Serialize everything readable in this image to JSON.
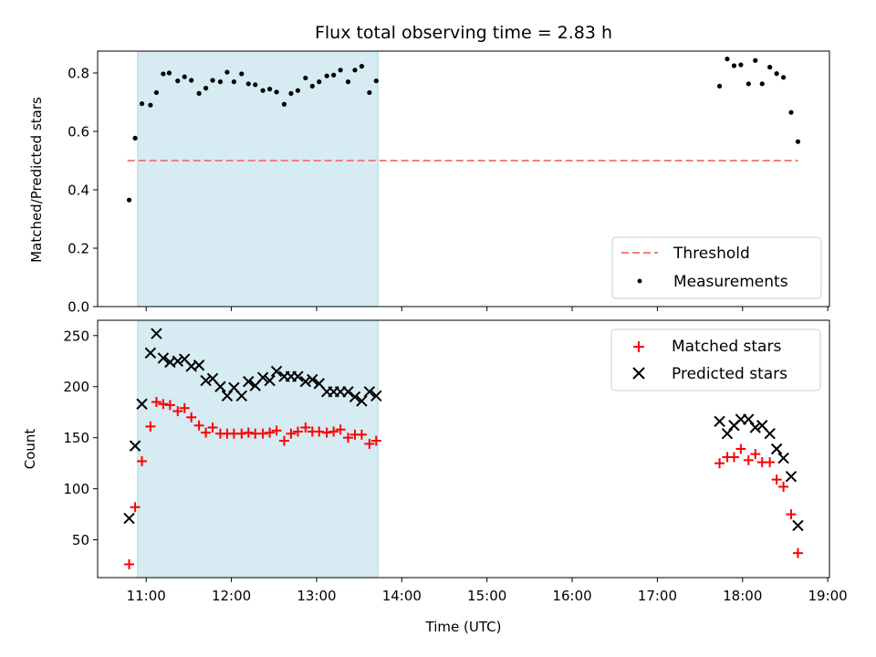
{
  "chart_data": [
    {
      "type": "scatter",
      "title": "Flux total observing time = 2.83 h",
      "xlabel": "",
      "ylabel": "Matched/Predicted stars",
      "xlim_hours": [
        10.43,
        19.02
      ],
      "ylim": [
        0,
        0.875
      ],
      "yticks": [
        0.0,
        0.2,
        0.4,
        0.6,
        0.8
      ],
      "ytick_labels": [
        "0.0",
        "0.2",
        "0.4",
        "0.6",
        "0.8"
      ],
      "shaded_span_hours": [
        10.9,
        13.72
      ],
      "shade_color": "#add8e6",
      "legend_position": "lower-right",
      "threshold": {
        "name": "Threshold",
        "value": 0.5,
        "x_range_hours": [
          10.78,
          18.65
        ],
        "color": "#f08080"
      },
      "series": [
        {
          "name": "Measurements",
          "marker": "dot",
          "color": "#000000",
          "points": [
            [
              10.8,
              0.365
            ],
            [
              10.87,
              0.577
            ],
            [
              10.95,
              0.695
            ],
            [
              11.05,
              0.69
            ],
            [
              11.12,
              0.733
            ],
            [
              11.2,
              0.797
            ],
            [
              11.27,
              0.8
            ],
            [
              11.37,
              0.773
            ],
            [
              11.45,
              0.787
            ],
            [
              11.53,
              0.775
            ],
            [
              11.62,
              0.73
            ],
            [
              11.7,
              0.748
            ],
            [
              11.78,
              0.775
            ],
            [
              11.87,
              0.77
            ],
            [
              11.95,
              0.803
            ],
            [
              12.03,
              0.77
            ],
            [
              12.12,
              0.797
            ],
            [
              12.2,
              0.763
            ],
            [
              12.28,
              0.76
            ],
            [
              12.37,
              0.74
            ],
            [
              12.45,
              0.745
            ],
            [
              12.53,
              0.735
            ],
            [
              12.62,
              0.693
            ],
            [
              12.7,
              0.73
            ],
            [
              12.78,
              0.74
            ],
            [
              12.87,
              0.783
            ],
            [
              12.95,
              0.755
            ],
            [
              13.03,
              0.77
            ],
            [
              13.12,
              0.79
            ],
            [
              13.2,
              0.793
            ],
            [
              13.28,
              0.81
            ],
            [
              13.37,
              0.77
            ],
            [
              13.45,
              0.81
            ],
            [
              13.53,
              0.823
            ],
            [
              13.62,
              0.733
            ],
            [
              13.7,
              0.773
            ],
            [
              17.73,
              0.755
            ],
            [
              17.82,
              0.848
            ],
            [
              17.9,
              0.825
            ],
            [
              17.98,
              0.828
            ],
            [
              18.07,
              0.763
            ],
            [
              18.15,
              0.843
            ],
            [
              18.23,
              0.763
            ],
            [
              18.32,
              0.82
            ],
            [
              18.4,
              0.798
            ],
            [
              18.48,
              0.785
            ],
            [
              18.57,
              0.665
            ],
            [
              18.65,
              0.565
            ]
          ]
        }
      ]
    },
    {
      "type": "scatter",
      "title": "",
      "xlabel": "Time (UTC)",
      "ylabel": "Count",
      "xlim_hours": [
        10.43,
        19.02
      ],
      "xticks_hours": [
        11,
        12,
        13,
        14,
        15,
        16,
        17,
        18,
        19
      ],
      "xtick_labels": [
        "11:00",
        "12:00",
        "13:00",
        "14:00",
        "15:00",
        "16:00",
        "17:00",
        "18:00",
        "19:00"
      ],
      "ylim": [
        13,
        265
      ],
      "yticks": [
        50,
        100,
        150,
        200,
        250
      ],
      "ytick_labels": [
        "50",
        "100",
        "150",
        "200",
        "250"
      ],
      "shaded_span_hours": [
        10.9,
        13.72
      ],
      "shade_color": "#add8e6",
      "legend_position": "upper-right",
      "series": [
        {
          "name": "Matched stars",
          "marker": "plus",
          "color": "#ff0000",
          "points": [
            [
              10.8,
              26
            ],
            [
              10.87,
              82
            ],
            [
              10.95,
              127
            ],
            [
              11.05,
              161
            ],
            [
              11.12,
              185
            ],
            [
              11.2,
              183
            ],
            [
              11.28,
              182
            ],
            [
              11.37,
              176
            ],
            [
              11.45,
              179
            ],
            [
              11.53,
              170
            ],
            [
              11.62,
              162
            ],
            [
              11.7,
              155
            ],
            [
              11.78,
              160
            ],
            [
              11.87,
              154
            ],
            [
              11.95,
              154
            ],
            [
              12.03,
              154
            ],
            [
              12.12,
              154
            ],
            [
              12.2,
              155
            ],
            [
              12.28,
              154
            ],
            [
              12.37,
              154
            ],
            [
              12.45,
              155
            ],
            [
              12.53,
              157
            ],
            [
              12.62,
              147
            ],
            [
              12.7,
              154
            ],
            [
              12.78,
              156
            ],
            [
              12.87,
              160
            ],
            [
              12.95,
              156
            ],
            [
              13.03,
              156
            ],
            [
              13.12,
              155
            ],
            [
              13.2,
              156
            ],
            [
              13.28,
              158
            ],
            [
              13.37,
              150
            ],
            [
              13.45,
              153
            ],
            [
              13.53,
              153
            ],
            [
              13.62,
              144
            ],
            [
              13.7,
              147
            ],
            [
              17.73,
              125
            ],
            [
              17.82,
              131
            ],
            [
              17.9,
              131
            ],
            [
              17.98,
              139
            ],
            [
              18.07,
              128
            ],
            [
              18.15,
              134
            ],
            [
              18.23,
              126
            ],
            [
              18.32,
              126
            ],
            [
              18.4,
              109
            ],
            [
              18.48,
              102
            ],
            [
              18.57,
              75
            ],
            [
              18.65,
              37
            ]
          ]
        },
        {
          "name": "Predicted stars",
          "marker": "x",
          "color": "#000000",
          "points": [
            [
              10.8,
              71
            ],
            [
              10.87,
              142
            ],
            [
              10.95,
              183
            ],
            [
              11.05,
              233
            ],
            [
              11.12,
              252
            ],
            [
              11.2,
              228
            ],
            [
              11.28,
              224
            ],
            [
              11.37,
              225
            ],
            [
              11.45,
              227
            ],
            [
              11.53,
              220
            ],
            [
              11.62,
              221
            ],
            [
              11.7,
              206
            ],
            [
              11.78,
              208
            ],
            [
              11.87,
              200
            ],
            [
              11.95,
              191
            ],
            [
              12.03,
              199
            ],
            [
              12.12,
              191
            ],
            [
              12.2,
              205
            ],
            [
              12.28,
              201
            ],
            [
              12.37,
              209
            ],
            [
              12.45,
              206
            ],
            [
              12.53,
              215
            ],
            [
              12.62,
              210
            ],
            [
              12.7,
              210
            ],
            [
              12.78,
              210
            ],
            [
              12.87,
              205
            ],
            [
              12.95,
              207
            ],
            [
              13.03,
              203
            ],
            [
              13.12,
              195
            ],
            [
              13.2,
              195
            ],
            [
              13.28,
              195
            ],
            [
              13.37,
              195
            ],
            [
              13.45,
              190
            ],
            [
              13.53,
              186
            ],
            [
              13.62,
              195
            ],
            [
              13.7,
              191
            ],
            [
              17.73,
              166
            ],
            [
              17.82,
              154
            ],
            [
              17.9,
              162
            ],
            [
              17.98,
              168
            ],
            [
              18.07,
              168
            ],
            [
              18.15,
              160
            ],
            [
              18.23,
              162
            ],
            [
              18.32,
              154
            ],
            [
              18.4,
              139
            ],
            [
              18.48,
              130
            ],
            [
              18.57,
              112
            ],
            [
              18.65,
              64
            ]
          ]
        }
      ]
    }
  ]
}
